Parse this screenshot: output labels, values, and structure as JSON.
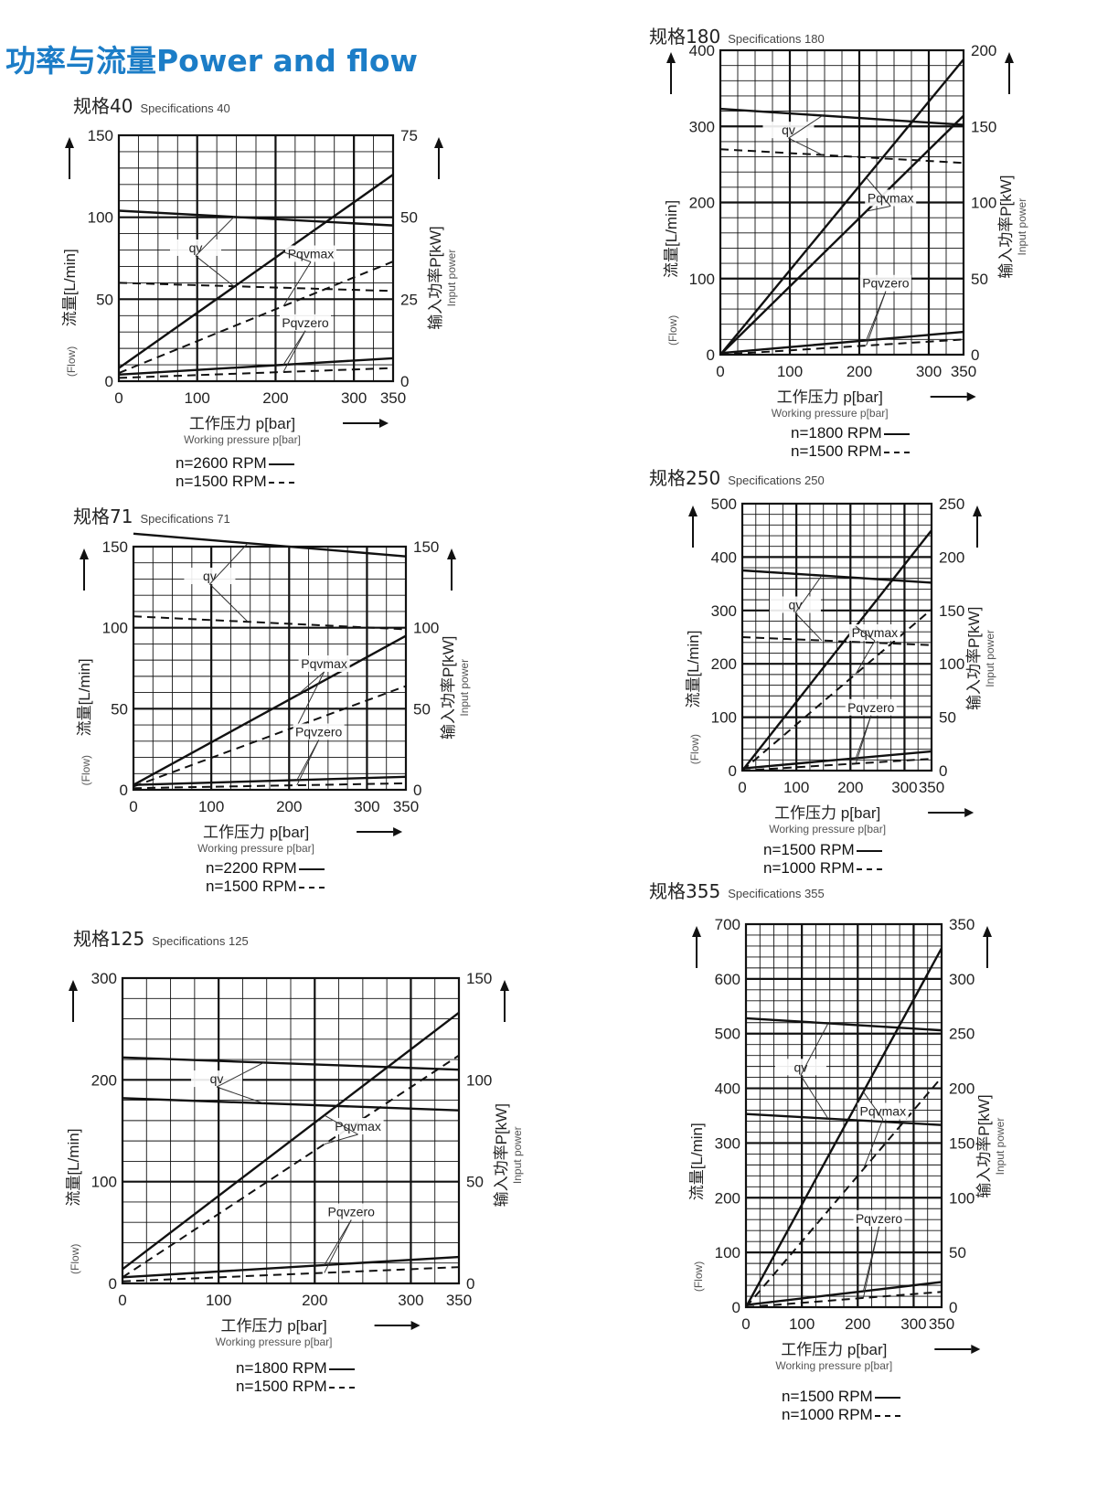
{
  "page_title": "功率与流量Power and flow",
  "common": {
    "x_title": "工作压力 p[bar]",
    "x_subtitle": "Working pressure p[bar]",
    "left_title": "流量[L/min]",
    "left_subtitle": "(Flow)",
    "right_title": "输入功率P[kW]",
    "right_subtitle": "Input power",
    "label_qv": "qv",
    "label_pqvmax": "Pqvmax",
    "label_pqvzero": "Pqvzero",
    "solid_line_style": "solid",
    "dashed_line_style": "dashed",
    "line_color": "#111111",
    "title_color": "#1c7dc7"
  },
  "chart_data": [
    {
      "type": "line",
      "spec_name": "规格40",
      "spec_en": "Specifications 40",
      "speed_solid": "n=2600 RPM",
      "speed_dashed": "n=1500 RPM",
      "x_ticks": [
        "0",
        "100",
        "200",
        "300",
        "350"
      ],
      "left_ticks": [
        "0",
        "50",
        "100",
        "150"
      ],
      "right_ticks": [
        "0",
        "25",
        "50",
        "75"
      ],
      "xlim": [
        0,
        350
      ],
      "ylim": [
        0,
        150
      ],
      "y2lim": [
        0,
        75
      ],
      "series": [
        {
          "curve": "qv",
          "style": "solid",
          "axis": "left",
          "x": [
            0,
            350
          ],
          "y": [
            104,
            95
          ]
        },
        {
          "curve": "qv",
          "style": "dashed",
          "axis": "left",
          "x": [
            0,
            350
          ],
          "y": [
            60,
            55
          ]
        },
        {
          "curve": "Pqvmax",
          "style": "solid",
          "axis": "right",
          "x": [
            0,
            350
          ],
          "y": [
            4,
            63
          ]
        },
        {
          "curve": "Pqvmax",
          "style": "dashed",
          "axis": "right",
          "x": [
            0,
            350
          ],
          "y": [
            2.5,
            36.5
          ]
        },
        {
          "curve": "Pqvzero",
          "style": "solid",
          "axis": "right",
          "x": [
            0,
            350
          ],
          "y": [
            2,
            7
          ]
        },
        {
          "curve": "Pqvzero",
          "style": "dashed",
          "axis": "right",
          "x": [
            0,
            350
          ],
          "y": [
            1,
            4
          ]
        }
      ]
    },
    {
      "type": "line",
      "spec_name": "规格71",
      "spec_en": "Specifications 71",
      "speed_solid": "n=2200 RPM",
      "speed_dashed": "n=1500 RPM",
      "x_ticks": [
        "0",
        "100",
        "200",
        "300",
        "350"
      ],
      "left_ticks": [
        "0",
        "50",
        "100",
        "150"
      ],
      "right_ticks": [
        "0",
        "50",
        "100",
        "150"
      ],
      "xlim": [
        0,
        350
      ],
      "ylim": [
        0,
        150
      ],
      "y2lim": [
        0,
        150
      ],
      "series": [
        {
          "curve": "qv",
          "style": "solid",
          "axis": "left",
          "x": [
            0,
            350
          ],
          "y": [
            158,
            144
          ]
        },
        {
          "curve": "qv",
          "style": "dashed",
          "axis": "left",
          "x": [
            0,
            350
          ],
          "y": [
            107,
            99
          ]
        },
        {
          "curve": "Pqvmax",
          "style": "solid",
          "axis": "right",
          "x": [
            0,
            350
          ],
          "y": [
            3,
            95
          ]
        },
        {
          "curve": "Pqvmax",
          "style": "dashed",
          "axis": "right",
          "x": [
            0,
            350
          ],
          "y": [
            2,
            64
          ]
        },
        {
          "curve": "Pqvzero",
          "style": "solid",
          "axis": "right",
          "x": [
            0,
            350
          ],
          "y": [
            3,
            8
          ]
        },
        {
          "curve": "Pqvzero",
          "style": "dashed",
          "axis": "right",
          "x": [
            0,
            350
          ],
          "y": [
            1,
            4
          ]
        }
      ]
    },
    {
      "type": "line",
      "spec_name": "规格125",
      "spec_en": "Specifications 125",
      "speed_solid": "n=1800 RPM",
      "speed_dashed": "n=1500 RPM",
      "x_ticks": [
        "0",
        "100",
        "200",
        "300",
        "350"
      ],
      "left_ticks": [
        "0",
        "100",
        "200",
        "300"
      ],
      "right_ticks": [
        "0",
        "50",
        "100",
        "150"
      ],
      "xlim": [
        0,
        350
      ],
      "ylim": [
        0,
        300
      ],
      "y2lim": [
        0,
        150
      ],
      "series": [
        {
          "curve": "qv",
          "style": "solid",
          "axis": "left",
          "x": [
            0,
            350
          ],
          "y": [
            222,
            210
          ]
        },
        {
          "curve": "qv",
          "style": "solid",
          "axis": "left",
          "x": [
            0,
            350
          ],
          "y": [
            182,
            170
          ]
        },
        {
          "curve": "Pqvmax",
          "style": "solid",
          "axis": "right",
          "x": [
            0,
            350
          ],
          "y": [
            7,
            133
          ]
        },
        {
          "curve": "Pqvmax",
          "style": "dashed",
          "axis": "right",
          "x": [
            0,
            350
          ],
          "y": [
            3,
            112
          ]
        },
        {
          "curve": "Pqvzero",
          "style": "solid",
          "axis": "right",
          "x": [
            0,
            350
          ],
          "y": [
            3,
            13
          ]
        },
        {
          "curve": "Pqvzero",
          "style": "dashed",
          "axis": "right",
          "x": [
            0,
            350
          ],
          "y": [
            1,
            8
          ]
        }
      ]
    },
    {
      "type": "line",
      "spec_name": "规格180",
      "spec_en": "Specifications 180",
      "speed_solid": "n=1800 RPM",
      "speed_dashed": "n=1500 RPM",
      "x_ticks": [
        "0",
        "100",
        "200",
        "300",
        "350"
      ],
      "left_ticks": [
        "0",
        "100",
        "200",
        "300",
        "400"
      ],
      "right_ticks": [
        "0",
        "50",
        "100",
        "150",
        "200"
      ],
      "xlim": [
        0,
        350
      ],
      "ylim": [
        0,
        400
      ],
      "y2lim": [
        0,
        200
      ],
      "series": [
        {
          "curve": "qv",
          "style": "solid",
          "axis": "left",
          "x": [
            0,
            350
          ],
          "y": [
            323,
            302
          ]
        },
        {
          "curve": "qv",
          "style": "dashed",
          "axis": "left",
          "x": [
            0,
            350
          ],
          "y": [
            270,
            252
          ]
        },
        {
          "curve": "Pqvmax",
          "style": "solid",
          "axis": "right",
          "x": [
            0,
            350
          ],
          "y": [
            0,
            194
          ]
        },
        {
          "curve": "Pqvmax",
          "style": "solid",
          "axis": "right",
          "x": [
            0,
            350
          ],
          "y": [
            0,
            157
          ]
        },
        {
          "curve": "Pqvzero",
          "style": "solid",
          "axis": "right",
          "x": [
            0,
            350
          ],
          "y": [
            1,
            15
          ]
        },
        {
          "curve": "Pqvzero",
          "style": "dashed",
          "axis": "right",
          "x": [
            0,
            350
          ],
          "y": [
            0,
            10
          ]
        }
      ]
    },
    {
      "type": "line",
      "spec_name": "规格250",
      "spec_en": "Specifications 250",
      "speed_solid": "n=1500 RPM",
      "speed_dashed": "n=1000 RPM",
      "x_ticks": [
        "0",
        "100",
        "200",
        "300",
        "350"
      ],
      "left_ticks": [
        "0",
        "100",
        "200",
        "300",
        "400",
        "500"
      ],
      "right_ticks": [
        "0",
        "50",
        "100",
        "150",
        "200",
        "250"
      ],
      "xlim": [
        0,
        350
      ],
      "ylim": [
        0,
        500
      ],
      "y2lim": [
        0,
        250
      ],
      "series": [
        {
          "curve": "qv",
          "style": "solid",
          "axis": "left",
          "x": [
            0,
            350
          ],
          "y": [
            375,
            352
          ]
        },
        {
          "curve": "qv",
          "style": "dashed",
          "axis": "left",
          "x": [
            0,
            350
          ],
          "y": [
            250,
            235
          ]
        },
        {
          "curve": "Pqvmax",
          "style": "solid",
          "axis": "right",
          "x": [
            0,
            350
          ],
          "y": [
            0,
            225
          ]
        },
        {
          "curve": "Pqvmax",
          "style": "dashed",
          "axis": "right",
          "x": [
            0,
            350
          ],
          "y": [
            0,
            151
          ]
        },
        {
          "curve": "Pqvzero",
          "style": "solid",
          "axis": "right",
          "x": [
            0,
            350
          ],
          "y": [
            2,
            18
          ]
        },
        {
          "curve": "Pqvzero",
          "style": "dashed",
          "axis": "right",
          "x": [
            0,
            350
          ],
          "y": [
            0,
            11
          ]
        }
      ]
    },
    {
      "type": "line",
      "spec_name": "规格355",
      "spec_en": "Specifications 355",
      "speed_solid": "n=1500 RPM",
      "speed_dashed": "n=1000 RPM",
      "x_ticks": [
        "0",
        "100",
        "200",
        "300",
        "350"
      ],
      "left_ticks": [
        "0",
        "100",
        "200",
        "300",
        "400",
        "500",
        "600",
        "700"
      ],
      "right_ticks": [
        "0",
        "50",
        "100",
        "150",
        "200",
        "250",
        "300",
        "350"
      ],
      "xlim": [
        0,
        350
      ],
      "ylim": [
        0,
        700
      ],
      "y2lim": [
        0,
        350
      ],
      "series": [
        {
          "curve": "qv",
          "style": "solid",
          "axis": "left",
          "x": [
            0,
            350
          ],
          "y": [
            528,
            506
          ]
        },
        {
          "curve": "qv",
          "style": "solid",
          "axis": "left",
          "x": [
            0,
            350
          ],
          "y": [
            353,
            333
          ]
        },
        {
          "curve": "Pqvmax",
          "style": "solid",
          "axis": "right",
          "x": [
            0,
            350
          ],
          "y": [
            0,
            328
          ]
        },
        {
          "curve": "Pqvmax",
          "style": "dashed",
          "axis": "right",
          "x": [
            0,
            350
          ],
          "y": [
            0,
            210
          ]
        },
        {
          "curve": "Pqvzero",
          "style": "solid",
          "axis": "right",
          "x": [
            0,
            350
          ],
          "y": [
            2,
            23
          ]
        },
        {
          "curve": "Pqvzero",
          "style": "dashed",
          "axis": "right",
          "x": [
            0,
            350
          ],
          "y": [
            0,
            14
          ]
        }
      ]
    }
  ]
}
